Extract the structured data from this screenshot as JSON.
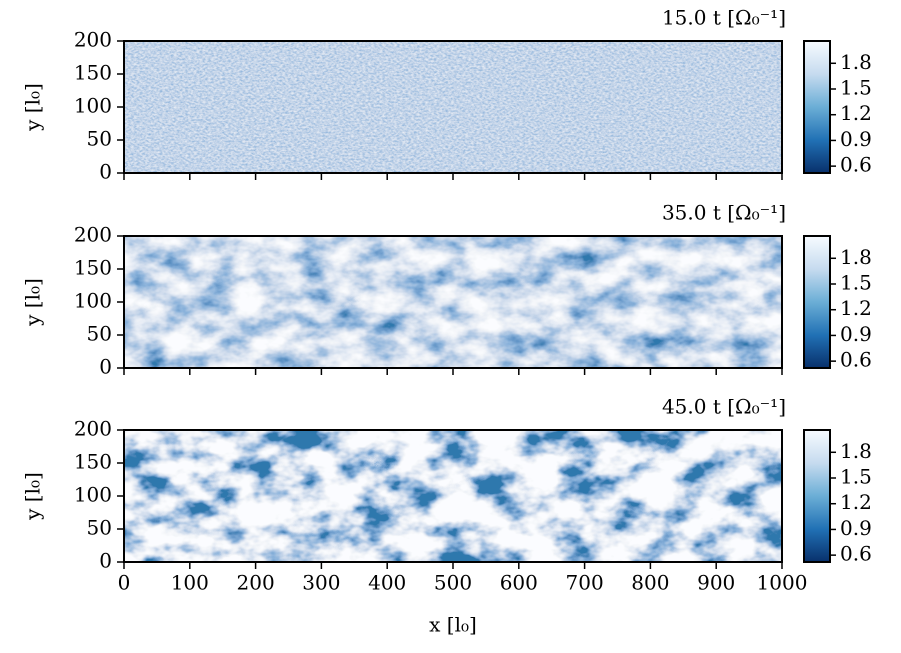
{
  "chart_data": [
    {
      "type": "heatmap",
      "title": "15.0 t [Ω₀⁻¹]",
      "ylabel": "y [l₀]",
      "cmap": "Blues_r",
      "xlim": [
        0,
        1000
      ],
      "xticks": [
        0,
        100,
        200,
        300,
        400,
        500,
        600,
        700,
        800,
        900,
        1000
      ],
      "ylim": [
        0,
        200
      ],
      "yticks": [
        0,
        50,
        100,
        150,
        200
      ],
      "clim": [
        0.52,
        2.06
      ],
      "cticks": [
        0.6,
        0.9,
        1.2,
        1.5,
        1.8
      ]
    },
    {
      "type": "heatmap",
      "title": "35.0 t [Ω₀⁻¹]",
      "ylabel": "y [l₀]",
      "cmap": "Blues_r",
      "xlim": [
        0,
        1000
      ],
      "xticks": [
        0,
        100,
        200,
        300,
        400,
        500,
        600,
        700,
        800,
        900,
        1000
      ],
      "ylim": [
        0,
        200
      ],
      "yticks": [
        0,
        50,
        100,
        150,
        200
      ],
      "clim": [
        0.52,
        2.06
      ],
      "cticks": [
        0.6,
        0.9,
        1.2,
        1.5,
        1.8
      ]
    },
    {
      "type": "heatmap",
      "title": "45.0 t [Ω₀⁻¹]",
      "ylabel": "y [l₀]",
      "xlabel": "x [l₀]",
      "cmap": "Blues_r",
      "xlim": [
        0,
        1000
      ],
      "xticks": [
        0,
        100,
        200,
        300,
        400,
        500,
        600,
        700,
        800,
        900,
        1000
      ],
      "ylim": [
        0,
        200
      ],
      "yticks": [
        0,
        50,
        100,
        150,
        200
      ],
      "clim": [
        0.52,
        2.06
      ],
      "cticks": [
        0.6,
        0.9,
        1.2,
        1.5,
        1.8
      ]
    }
  ]
}
